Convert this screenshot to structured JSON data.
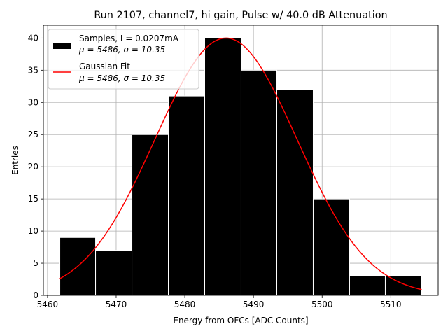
{
  "chart_data": {
    "type": "bar",
    "title": "Run 2107, channel7, hi gain, Pulse w/ 40.0 dB Attenuation",
    "xlabel": "Energy from OFCs [ADC Counts]",
    "ylabel": "Entries",
    "xlim": [
      5459.4,
      5516.9
    ],
    "ylim": [
      0,
      42
    ],
    "grid": true,
    "legend_position": "top-left",
    "x_ticks": [
      "5460",
      "5470",
      "5480",
      "5490",
      "5500",
      "5510"
    ],
    "y_ticks": [
      "0",
      "5",
      "10",
      "15",
      "20",
      "25",
      "30",
      "35",
      "40"
    ],
    "histogram": {
      "name": "Samples, I = 0.0207mA",
      "stats": "μ = 5486, σ = 10.35",
      "color": "#000000",
      "bin_edges": [
        5461.8,
        5467.0,
        5472.3,
        5477.6,
        5482.9,
        5488.2,
        5493.4,
        5498.7,
        5504.0,
        5509.2,
        5514.5
      ],
      "counts": [
        9,
        7,
        25,
        31,
        40,
        35,
        32,
        15,
        3,
        3
      ]
    },
    "fit": {
      "name": "Gaussian Fit",
      "stats": "μ = 5486, σ = 10.35",
      "color": "#ff0000",
      "mu": 5486,
      "sigma": 10.35,
      "amplitude": 40,
      "x_range": [
        5461.8,
        5514.5
      ]
    }
  }
}
